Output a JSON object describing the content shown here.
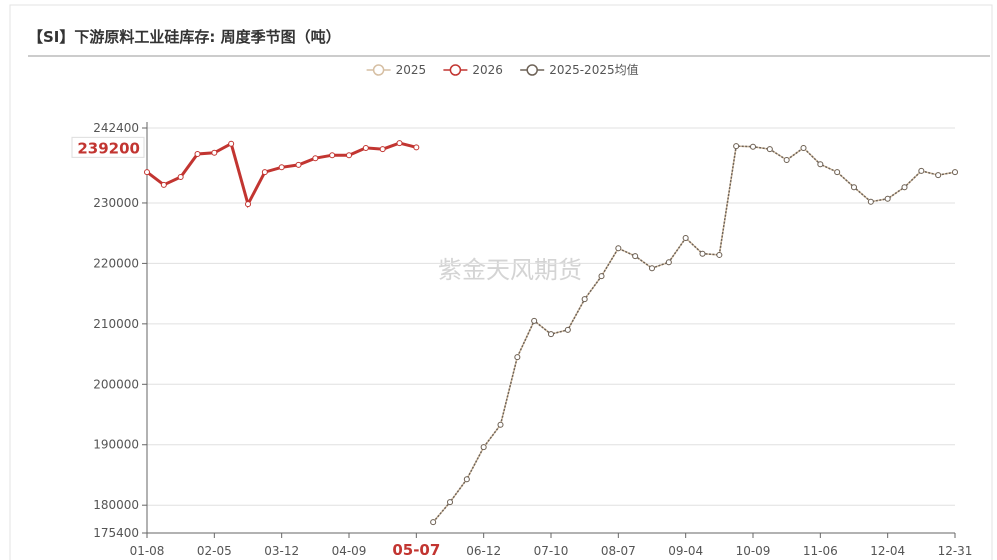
{
  "chart_data": {
    "type": "line",
    "title": "【SI】下游原料工业硅库存: 周度季节图（吨）",
    "watermark": "紫金天风期货",
    "categories": [
      "01-08",
      null,
      null,
      null,
      "02-05",
      null,
      null,
      null,
      "03-12",
      null,
      null,
      null,
      "04-09",
      null,
      null,
      null,
      "05-07",
      null,
      null,
      null,
      "06-12",
      null,
      null,
      null,
      "07-10",
      null,
      null,
      null,
      "08-07",
      null,
      null,
      null,
      "09-04",
      null,
      null,
      null,
      "10-09",
      null,
      null,
      null,
      "11-06",
      null,
      null,
      null,
      "12-04",
      null,
      null,
      null,
      "12-31"
    ],
    "series": [
      {
        "name": "2025",
        "color": "#d6bfa3",
        "values": [
          null,
          null,
          null,
          null,
          null,
          null,
          null,
          null,
          null,
          null,
          null,
          null,
          null,
          null,
          null,
          null,
          null,
          177200,
          180500,
          184300,
          189600,
          193300,
          204500,
          210500,
          208300,
          209000,
          214100,
          217900,
          222500,
          221200,
          219200,
          220200,
          224200,
          221600,
          221400,
          239400,
          239300,
          238900,
          237100,
          239100,
          236400,
          235100,
          232600,
          230200,
          230700,
          232600,
          235300,
          234600,
          235100
        ]
      },
      {
        "name": "2026",
        "color": "#c23531",
        "values": [
          235100,
          233000,
          234300,
          238100,
          238300,
          239800,
          229800,
          235100,
          235900,
          236300,
          237400,
          237900,
          237900,
          239100,
          238900,
          239900,
          239200,
          null,
          null,
          null,
          null,
          null,
          null,
          null,
          null,
          null,
          null,
          null,
          null,
          null,
          null,
          null,
          null,
          null,
          null,
          null,
          null,
          null,
          null,
          null,
          null,
          null,
          null,
          null,
          null,
          null,
          null,
          null,
          null
        ]
      },
      {
        "name": "2025-2025均值",
        "color": "#6e6358",
        "values": [
          null,
          null,
          null,
          null,
          null,
          null,
          null,
          null,
          null,
          null,
          null,
          null,
          null,
          null,
          null,
          null,
          null,
          177200,
          180500,
          184300,
          189600,
          193300,
          204500,
          210500,
          208300,
          209000,
          214100,
          217900,
          222500,
          221200,
          219200,
          220200,
          224200,
          221600,
          221400,
          239400,
          239300,
          238900,
          237100,
          239100,
          236400,
          235100,
          232600,
          230200,
          230700,
          232600,
          235300,
          234600,
          235100
        ]
      }
    ],
    "ylim": [
      175400,
      242400
    ],
    "yticks": [
      175400,
      180000,
      190000,
      200000,
      210000,
      220000,
      230000,
      242400
    ],
    "grid": true,
    "axis_pointer_index": 16,
    "axis_pointer_value": 239200
  }
}
